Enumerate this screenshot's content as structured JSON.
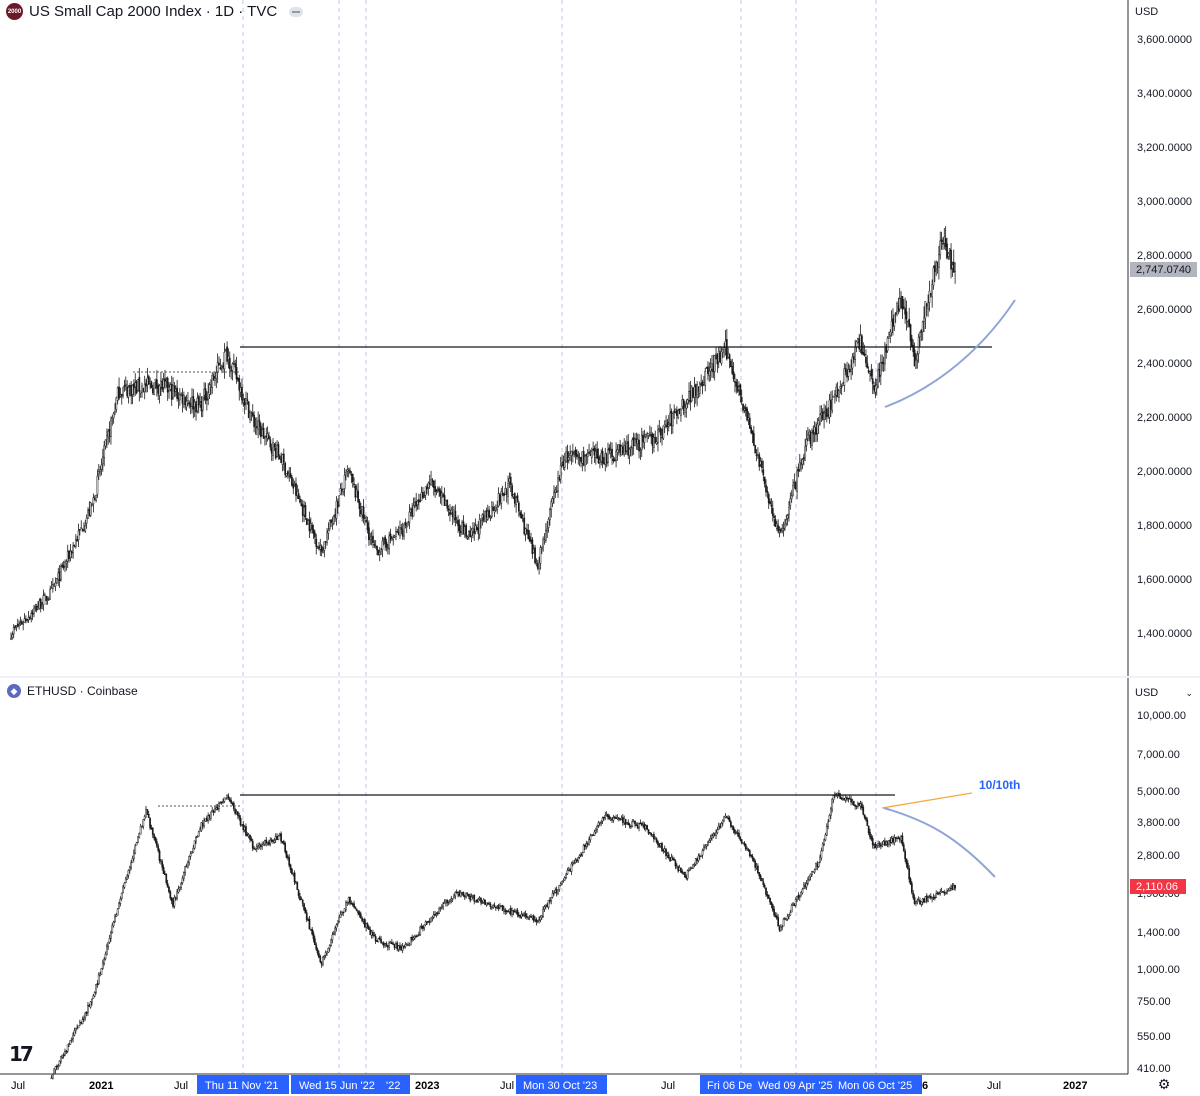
{
  "colors": {
    "grid_dashed": "#b9c8ea",
    "resistance": "#131722",
    "candle": "#1a1a1a",
    "curve": "#90a4d8",
    "orange": "#f7a941",
    "date_badge": "#2962ff",
    "price_badge_top": "#b2b5be",
    "price_badge_bottom": "#f23645",
    "annotation": "#2962ff"
  },
  "top_pane": {
    "title": "US Small Cap 2000 Index · 1D · TVC",
    "logo_text": "2000",
    "currency": "USD",
    "last_price": "2,747.0740",
    "y_labels": [
      "3,600.0000",
      "3,400.0000",
      "3,200.0000",
      "3,000.0000",
      "2,800.0000",
      "2,600.0000",
      "2,400.0000",
      "2,200.0000",
      "2,000.0000",
      "1,800.0000",
      "1,600.0000",
      "1,400.0000"
    ]
  },
  "bottom_pane": {
    "title": "ETHUSD · Coinbase",
    "logo_text": "◆",
    "currency": "USD",
    "last_price": "2,110.06",
    "annotation": "10/10th",
    "y_labels": [
      "10,000.00",
      "7,000.00",
      "5,000.00",
      "3,800.00",
      "2,800.00",
      "1,900.00",
      "1,400.00",
      "1,000.00",
      "750.00",
      "550.00",
      "410.00"
    ]
  },
  "time_axis": {
    "labels": [
      "Jul",
      "2021",
      "Jul",
      "2023",
      "Jul",
      "Jul",
      "6",
      "Jul",
      "2027"
    ],
    "highlighted": [
      "Thu 11 Nov '21",
      "Wed 15 Jun '22",
      "'22",
      "Mon 30 Oct '23",
      "Fri 06 De",
      "Wed 09 Apr '25",
      "Mon 06 Oct '25"
    ]
  },
  "tv_logo": "17",
  "settings_icon": "gear-icon",
  "chart_data": [
    {
      "type": "line",
      "title": "US Small Cap 2000 Index · 1D · TVC",
      "ylim": [
        1300,
        3720
      ],
      "x": [
        "2020-07",
        "2020-10",
        "2021-01",
        "2021-03",
        "2021-06",
        "2021-09",
        "2021-11",
        "2022-01",
        "2022-03",
        "2022-06",
        "2022-08",
        "2022-10",
        "2022-12",
        "2023-02",
        "2023-05",
        "2023-08",
        "2023-10",
        "2023-12",
        "2024-03",
        "2024-07",
        "2024-09",
        "2024-12",
        "2025-01",
        "2025-04",
        "2025-06",
        "2025-08",
        "2025-10",
        "2025-11",
        "2026-01",
        "2026-02",
        "2026-04",
        "2026-05"
      ],
      "series": [
        {
          "values": [
            1400,
            1550,
            1870,
            2300,
            2320,
            2240,
            2440,
            2180,
            2050,
            1700,
            2000,
            1700,
            1780,
            1960,
            1750,
            1950,
            1650,
            2050,
            2050,
            2130,
            2260,
            2450,
            2300,
            1750,
            2100,
            2270,
            2480,
            2310,
            2650,
            2420,
            2860,
            2747
          ]
        }
      ],
      "resistance": 2455,
      "grid": false
    },
    {
      "type": "line",
      "title": "ETHUSD · Coinbase",
      "yscale": "log",
      "ylim": [
        400,
        11000
      ],
      "x": [
        "2020-10",
        "2021-01",
        "2021-03",
        "2021-05",
        "2021-07",
        "2021-09",
        "2021-11",
        "2022-01",
        "2022-03",
        "2022-06",
        "2022-08",
        "2022-10",
        "2022-12",
        "2023-04",
        "2023-10",
        "2024-03",
        "2024-06",
        "2024-09",
        "2024-12",
        "2025-02",
        "2025-04",
        "2025-07",
        "2025-08",
        "2025-10",
        "2025-11",
        "2026-01",
        "2026-02",
        "2026-05"
      ],
      "series": [
        {
          "values": [
            380,
            750,
            1800,
            4200,
            1800,
            3600,
            4800,
            3000,
            3300,
            1050,
            1900,
            1300,
            1200,
            2000,
            1550,
            4000,
            3600,
            2300,
            4000,
            2700,
            1450,
            2700,
            4900,
            4350,
            3000,
            3300,
            1800,
            2110
          ]
        }
      ],
      "resistance": 4870,
      "grid": false
    }
  ]
}
